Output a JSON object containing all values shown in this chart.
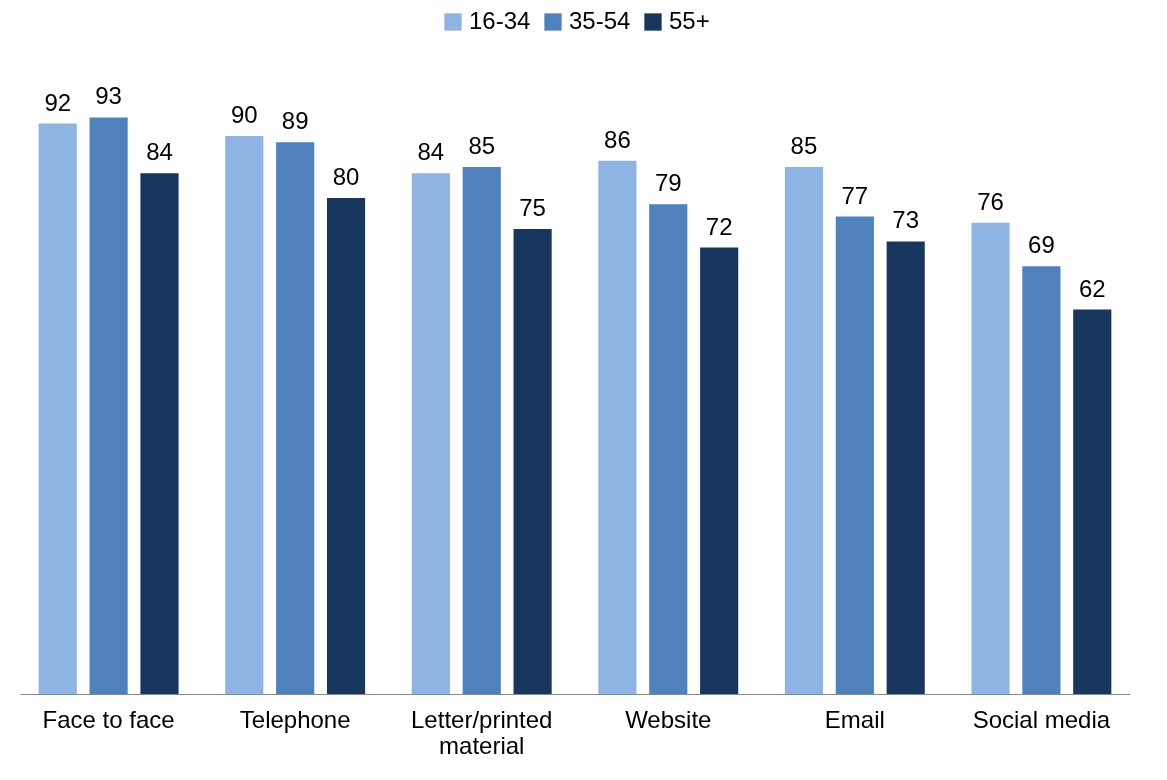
{
  "chart_data": {
    "type": "bar",
    "categories": [
      "Face to face",
      "Telephone",
      "Letter/printed material",
      "Website",
      "Email",
      "Social media"
    ],
    "series": [
      {
        "name": "16-34",
        "color": "#8eb4e3",
        "values": [
          92,
          90,
          84,
          86,
          85,
          76
        ]
      },
      {
        "name": "35-54",
        "color": "#4f81bd",
        "values": [
          93,
          89,
          85,
          79,
          77,
          69
        ]
      },
      {
        "name": "55+",
        "color": "#17375e",
        "values": [
          84,
          80,
          75,
          72,
          73,
          62
        ]
      }
    ],
    "data_labels": true,
    "legend": "top",
    "grid": false
  }
}
